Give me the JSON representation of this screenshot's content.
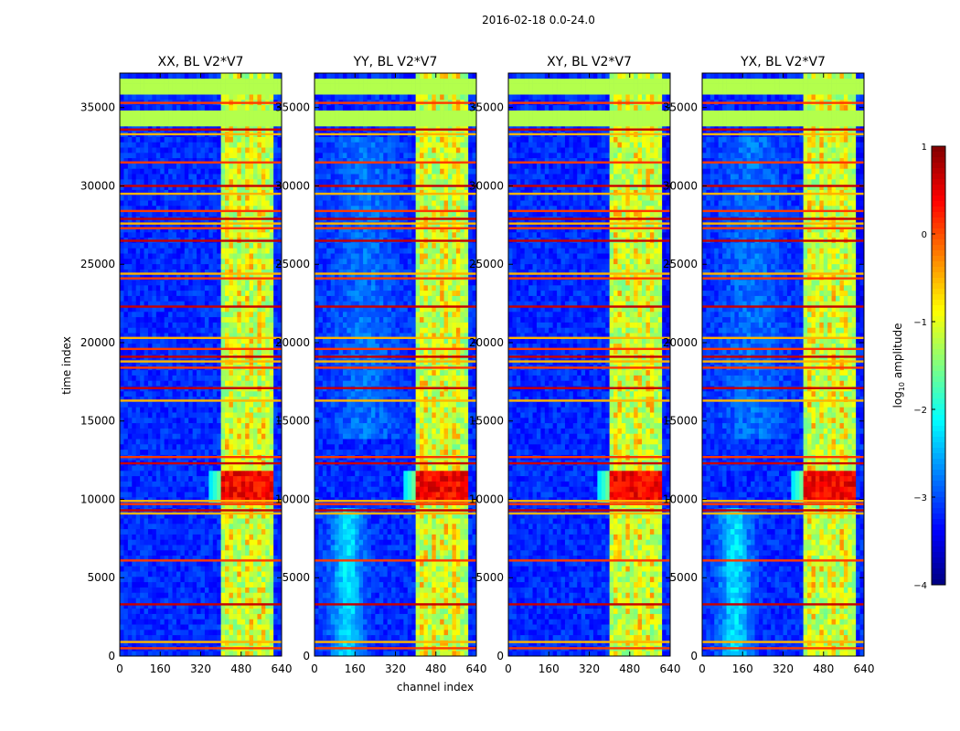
{
  "chart_data": {
    "type": "heatmap",
    "suptitle": "2016-02-18 0.0-24.0",
    "xlabel": "channel index",
    "ylabel": "time index",
    "xlim": [
      0,
      640
    ],
    "ylim": [
      0,
      37200
    ],
    "xticks": [
      0,
      160,
      320,
      480,
      640
    ],
    "yticks": [
      0,
      5000,
      10000,
      15000,
      20000,
      25000,
      30000,
      35000
    ],
    "panels": [
      {
        "title": "XX, BL V2*V7",
        "polarization": "XX"
      },
      {
        "title": "YY, BL V2*V7",
        "polarization": "YY"
      },
      {
        "title": "XY, BL V2*V7",
        "polarization": "XY"
      },
      {
        "title": "YX, BL V2*V7",
        "polarization": "YX"
      }
    ],
    "colorbar": {
      "label": "log10 amplitude",
      "label_main": "log",
      "label_sub": "10",
      "label_rest": " amplitude",
      "range": [
        -4,
        1
      ],
      "ticks": [
        1,
        0,
        -1,
        -2,
        -3,
        -4
      ],
      "tick_labels": [
        "1",
        "0",
        "−1",
        "−2",
        "−3",
        "−4"
      ],
      "colormap": "jet"
    },
    "features": {
      "rfi_channel_band": [
        405,
        600
      ],
      "strong_time_band": [
        9900,
        11800
      ],
      "flagged_time_ranges": [
        [
          33800,
          34200
        ],
        [
          34200,
          35000
        ],
        [
          36000,
          36800
        ]
      ],
      "bright_rows": [
        500,
        900,
        3300,
        6100,
        9100,
        9300,
        9700,
        9900,
        12300,
        12700,
        16300,
        17100,
        18400,
        18800,
        19100,
        19600,
        20300,
        22300,
        24100,
        24400,
        26500,
        27300,
        27600,
        27900,
        28400,
        29500,
        30000,
        31500,
        33300,
        33600,
        35300
      ]
    }
  }
}
